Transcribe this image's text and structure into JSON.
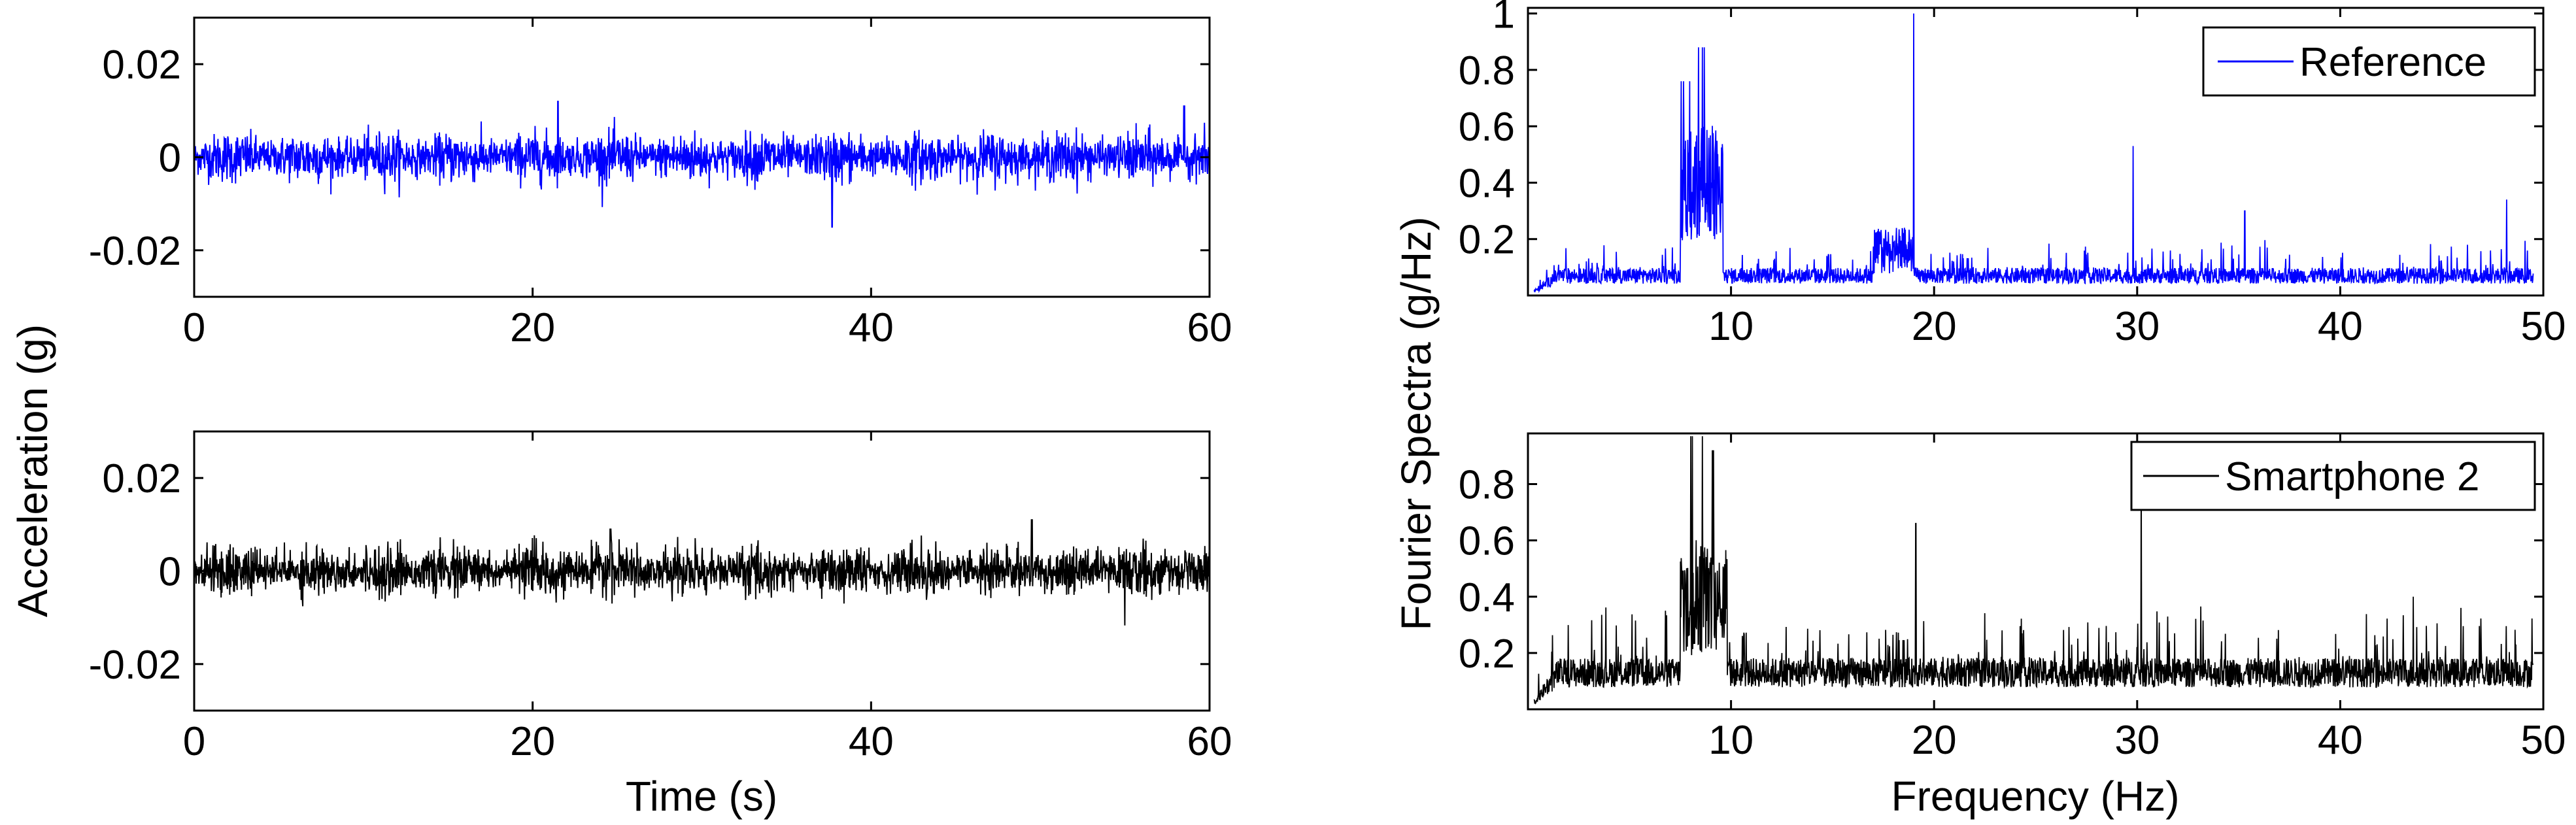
{
  "chart_data": [
    {
      "id": "ref-time",
      "type": "line",
      "xlim": [
        0,
        60
      ],
      "ylim": [
        -0.03,
        0.03
      ],
      "xticks": [
        0,
        20,
        40,
        60
      ],
      "xtick_labels": [
        "0",
        "20",
        "40",
        "60"
      ],
      "yticks": [
        0.02,
        0,
        -0.02
      ],
      "ytick_labels": [
        "0.02",
        "0",
        "-0.02"
      ],
      "series": [
        {
          "color": "#0000ff",
          "noise_std": 0.0022,
          "bursts": [
            {
              "x": 21.5,
              "peak": 0.012
            },
            {
              "x": 37.7,
              "peak": -0.015
            },
            {
              "x": 58.5,
              "peak": 0.011
            }
          ]
        }
      ],
      "grid": false
    },
    {
      "id": "ref-fft",
      "type": "line",
      "xlim": [
        0,
        50
      ],
      "ylim": [
        0,
        1.02
      ],
      "xticks": [
        10,
        20,
        30,
        40,
        50
      ],
      "xtick_labels": [
        "10",
        "20",
        "30",
        "40",
        "50"
      ],
      "yticks": [
        0.2,
        0.4,
        0.6,
        0.8,
        1
      ],
      "ytick_labels": [
        "0.2",
        "0.4",
        "0.6",
        "0.8",
        "1"
      ],
      "series": [
        {
          "name": "Reference",
          "color": "#0000ff",
          "base": 0.07,
          "bands": [
            {
              "from": 7.5,
              "to": 9.6,
              "level": 0.55,
              "peaks": [
                0.76,
                0.88,
                0.8
              ]
            },
            {
              "from": 17,
              "to": 19,
              "level": 0.22
            }
          ],
          "spikes": [
            {
              "x": 19.0,
              "y": 1.0
            },
            {
              "x": 29.8,
              "y": 0.53
            },
            {
              "x": 35.3,
              "y": 0.3
            },
            {
              "x": 48.2,
              "y": 0.34
            }
          ]
        }
      ],
      "legend": "top-right",
      "grid": false
    },
    {
      "id": "phone-time",
      "type": "line",
      "xlim": [
        0,
        60
      ],
      "ylim": [
        -0.03,
        0.03
      ],
      "xticks": [
        0,
        20,
        40,
        60
      ],
      "xtick_labels": [
        "0",
        "20",
        "40",
        "60"
      ],
      "yticks": [
        0.02,
        0,
        -0.02
      ],
      "ytick_labels": [
        "0.02",
        "0",
        "-0.02"
      ],
      "xlabel": "Time (s)",
      "series": [
        {
          "color": "#000000",
          "noise_std": 0.0022,
          "bursts": [
            {
              "x": 24.6,
              "peak": 0.009
            },
            {
              "x": 49.5,
              "peak": 0.011
            }
          ]
        }
      ],
      "grid": false
    },
    {
      "id": "phone-fft",
      "type": "line",
      "xlim": [
        0,
        50
      ],
      "ylim": [
        0,
        0.98
      ],
      "xticks": [
        10,
        20,
        30,
        40,
        50
      ],
      "xtick_labels": [
        "10",
        "20",
        "30",
        "40",
        "50"
      ],
      "yticks": [
        0.2,
        0.4,
        0.6,
        0.8
      ],
      "ytick_labels": [
        "0.2",
        "0.4",
        "0.6",
        "0.8"
      ],
      "xlabel": "Frequency (Hz)",
      "series": [
        {
          "name": "Smartphone 2",
          "color": "#000000",
          "base": 0.13,
          "bands": [
            {
              "from": 7.5,
              "to": 9.8,
              "level": 0.55,
              "peaks": [
                0.97,
                0.97,
                0.92
              ]
            }
          ],
          "spikes": [
            {
              "x": 19.1,
              "y": 0.66
            },
            {
              "x": 30.2,
              "y": 0.87
            },
            {
              "x": 43.6,
              "y": 0.4
            }
          ]
        }
      ],
      "legend": "top-right",
      "grid": false
    }
  ],
  "figure": {
    "ylabel_left": "Acceleration (g)",
    "ylabel_right": "Fourier Spectra (g/Hz)"
  }
}
